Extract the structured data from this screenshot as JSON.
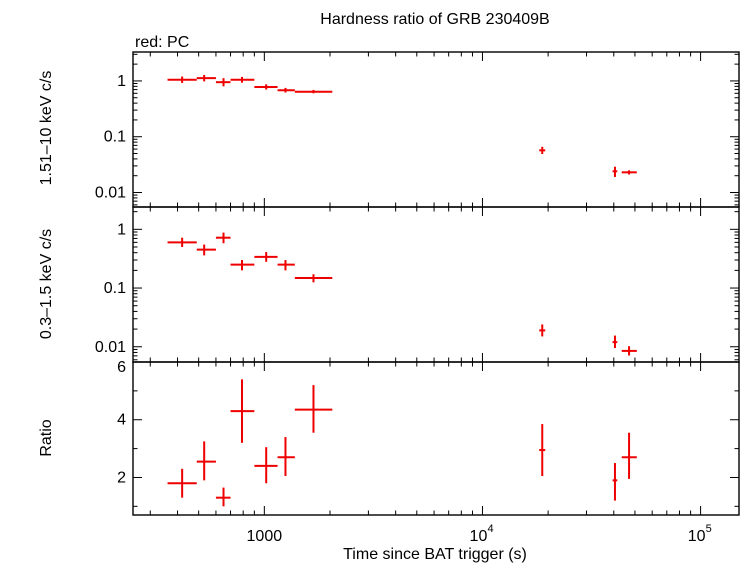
{
  "chart_data": {
    "type": "scatter",
    "title": "Hardness ratio of GRB 230409B",
    "subtitle": "red: PC",
    "xlabel": "Time since BAT trigger (s)",
    "xscale": "log",
    "xlim": [
      250,
      150000
    ],
    "x_ticks": [
      {
        "value": 1000,
        "label": "1000"
      },
      {
        "value": 10000,
        "label": "10",
        "exp": "4"
      },
      {
        "value": 100000,
        "label": "10",
        "exp": "5"
      }
    ],
    "color": "#ee0000",
    "panels": [
      {
        "name": "hard",
        "ylabel": "1.51–10 keV c/s",
        "yscale": "log",
        "ylim": [
          0.0055,
          3.3
        ],
        "y_ticks": [
          {
            "value": 1,
            "label": "1"
          },
          {
            "value": 0.1,
            "label": "0.1"
          },
          {
            "value": 0.01,
            "label": "0.01"
          }
        ],
        "points": [
          {
            "x": 420,
            "xlo": 360,
            "xhi": 490,
            "y": 1.05,
            "ylo": 0.92,
            "yhi": 1.2
          },
          {
            "x": 530,
            "xlo": 490,
            "xhi": 600,
            "y": 1.12,
            "ylo": 0.98,
            "yhi": 1.28
          },
          {
            "x": 650,
            "xlo": 600,
            "xhi": 700,
            "y": 0.95,
            "ylo": 0.8,
            "yhi": 1.12
          },
          {
            "x": 790,
            "xlo": 700,
            "xhi": 900,
            "y": 1.05,
            "ylo": 0.93,
            "yhi": 1.18
          },
          {
            "x": 1020,
            "xlo": 900,
            "xhi": 1150,
            "y": 0.78,
            "ylo": 0.7,
            "yhi": 0.87
          },
          {
            "x": 1250,
            "xlo": 1150,
            "xhi": 1380,
            "y": 0.68,
            "ylo": 0.62,
            "yhi": 0.75
          },
          {
            "x": 1680,
            "xlo": 1380,
            "xhi": 2050,
            "y": 0.64,
            "ylo": 0.6,
            "yhi": 0.69
          },
          {
            "x": 18800,
            "xlo": 18200,
            "xhi": 19400,
            "y": 0.057,
            "ylo": 0.049,
            "yhi": 0.066
          },
          {
            "x": 40500,
            "xlo": 39500,
            "xhi": 41500,
            "y": 0.024,
            "ylo": 0.019,
            "yhi": 0.029
          },
          {
            "x": 47000,
            "xlo": 43500,
            "xhi": 51000,
            "y": 0.023,
            "ylo": 0.021,
            "yhi": 0.025
          }
        ]
      },
      {
        "name": "soft",
        "ylabel": "0.3–1.5 keV c/s",
        "yscale": "log",
        "ylim": [
          0.0055,
          2.4
        ],
        "y_ticks": [
          {
            "value": 1,
            "label": "1"
          },
          {
            "value": 0.1,
            "label": "0.1"
          },
          {
            "value": 0.01,
            "label": "0.01"
          }
        ],
        "points": [
          {
            "x": 420,
            "xlo": 360,
            "xhi": 490,
            "y": 0.6,
            "ylo": 0.5,
            "yhi": 0.72
          },
          {
            "x": 530,
            "xlo": 490,
            "xhi": 600,
            "y": 0.45,
            "ylo": 0.36,
            "yhi": 0.55
          },
          {
            "x": 650,
            "xlo": 600,
            "xhi": 700,
            "y": 0.72,
            "ylo": 0.58,
            "yhi": 0.88
          },
          {
            "x": 790,
            "xlo": 700,
            "xhi": 900,
            "y": 0.25,
            "ylo": 0.2,
            "yhi": 0.3
          },
          {
            "x": 1020,
            "xlo": 900,
            "xhi": 1150,
            "y": 0.34,
            "ylo": 0.28,
            "yhi": 0.41
          },
          {
            "x": 1250,
            "xlo": 1150,
            "xhi": 1380,
            "y": 0.25,
            "ylo": 0.2,
            "yhi": 0.3
          },
          {
            "x": 1680,
            "xlo": 1380,
            "xhi": 2050,
            "y": 0.148,
            "ylo": 0.125,
            "yhi": 0.172
          },
          {
            "x": 18800,
            "xlo": 18200,
            "xhi": 19400,
            "y": 0.019,
            "ylo": 0.015,
            "yhi": 0.024
          },
          {
            "x": 40500,
            "xlo": 39500,
            "xhi": 41500,
            "y": 0.012,
            "ylo": 0.0095,
            "yhi": 0.0155
          },
          {
            "x": 47000,
            "xlo": 43500,
            "xhi": 51000,
            "y": 0.0085,
            "ylo": 0.0071,
            "yhi": 0.0102
          }
        ]
      },
      {
        "name": "ratio",
        "ylabel": "Ratio",
        "yscale": "linear",
        "ylim": [
          0.7,
          6
        ],
        "y_ticks": [
          {
            "value": 2,
            "label": "2"
          },
          {
            "value": 4,
            "label": "4"
          },
          {
            "value": 6,
            "label": "6"
          }
        ],
        "points": [
          {
            "x": 420,
            "xlo": 360,
            "xhi": 490,
            "y": 1.8,
            "ylo": 1.3,
            "yhi": 2.3
          },
          {
            "x": 530,
            "xlo": 490,
            "xhi": 600,
            "y": 2.55,
            "ylo": 1.9,
            "yhi": 3.25
          },
          {
            "x": 650,
            "xlo": 600,
            "xhi": 700,
            "y": 1.3,
            "ylo": 1.0,
            "yhi": 1.65
          },
          {
            "x": 790,
            "xlo": 700,
            "xhi": 900,
            "y": 4.3,
            "ylo": 3.2,
            "yhi": 5.4
          },
          {
            "x": 1020,
            "xlo": 900,
            "xhi": 1150,
            "y": 2.4,
            "ylo": 1.8,
            "yhi": 3.05
          },
          {
            "x": 1250,
            "xlo": 1150,
            "xhi": 1380,
            "y": 2.7,
            "ylo": 2.05,
            "yhi": 3.4
          },
          {
            "x": 1680,
            "xlo": 1380,
            "xhi": 2050,
            "y": 4.35,
            "ylo": 3.55,
            "yhi": 5.2
          },
          {
            "x": 18800,
            "xlo": 18200,
            "xhi": 19400,
            "y": 2.95,
            "ylo": 2.05,
            "yhi": 3.85
          },
          {
            "x": 40500,
            "xlo": 39500,
            "xhi": 41500,
            "y": 1.9,
            "ylo": 1.2,
            "yhi": 2.5
          },
          {
            "x": 47000,
            "xlo": 43500,
            "xhi": 51000,
            "y": 2.7,
            "ylo": 1.95,
            "yhi": 3.55
          }
        ]
      }
    ]
  }
}
